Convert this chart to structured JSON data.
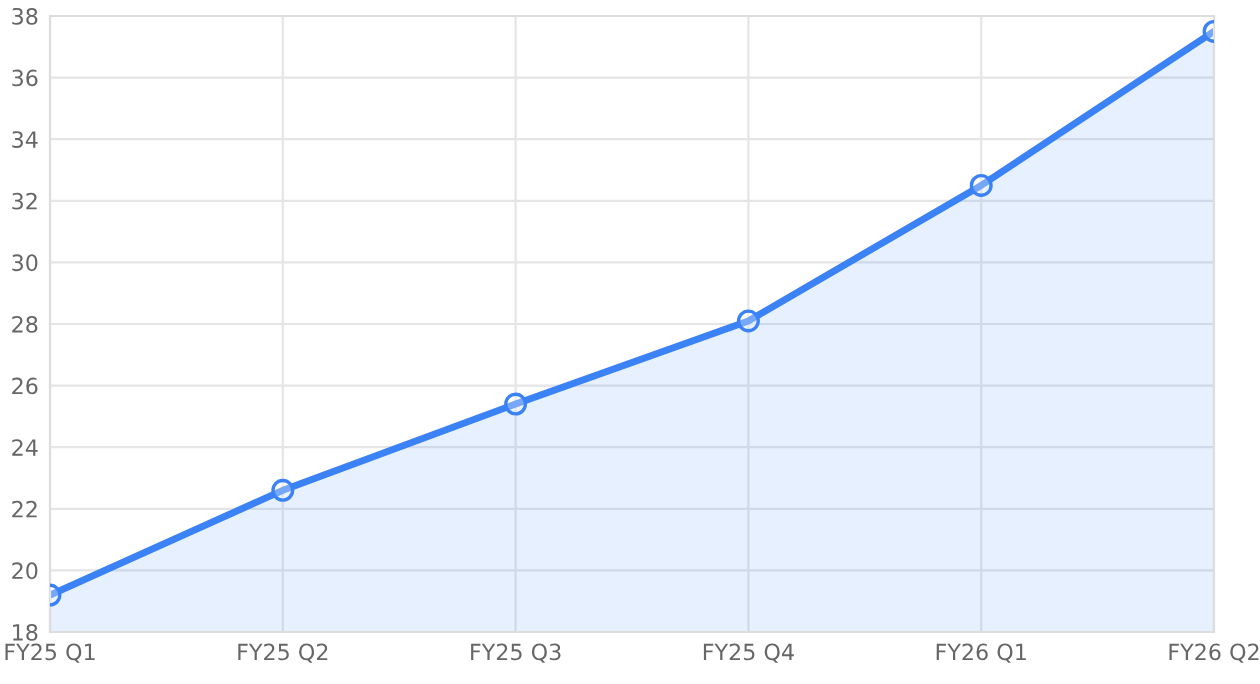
{
  "chart_data": {
    "type": "area",
    "categories": [
      "FY25 Q1",
      "FY25 Q2",
      "FY25 Q3",
      "FY25 Q4",
      "FY26 Q1",
      "FY26 Q2"
    ],
    "series": [
      {
        "color": "#3b82f6",
        "values": [
          19.2,
          22.6,
          25.4,
          28.1,
          32.5,
          37.5
        ]
      }
    ],
    "ylim": [
      18,
      38
    ],
    "yticks": [
      18,
      20,
      22,
      24,
      26,
      28,
      30,
      32,
      34,
      36,
      38
    ],
    "grid": true,
    "marker": "circle",
    "line_style": "solid"
  }
}
